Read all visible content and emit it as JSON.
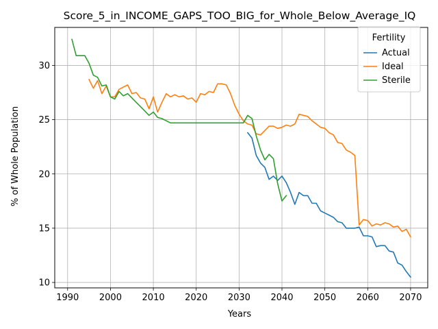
{
  "chart_data": {
    "type": "line",
    "title": "Score_5_in_INCOME_GAPS_TOO_BIG_for_Whole_Below_Average_IQ",
    "xlabel": "Years",
    "ylabel": "% of Whole Population",
    "xlim": [
      1987,
      2074
    ],
    "ylim": [
      9.5,
      33.5
    ],
    "xticks": [
      1990,
      2000,
      2010,
      2020,
      2030,
      2040,
      2050,
      2060,
      2070
    ],
    "yticks": [
      10,
      15,
      20,
      25,
      30
    ],
    "grid": true,
    "legend": {
      "title": "Fertility",
      "placement": "top-right",
      "entries": [
        "Actual",
        "Ideal",
        "Sterile"
      ]
    },
    "series": [
      {
        "name": "Actual",
        "color": "#1f77b4",
        "points": [
          [
            2032,
            23.8
          ],
          [
            2033,
            23.3
          ],
          [
            2034,
            21.7
          ],
          [
            2035,
            21.0
          ],
          [
            2036,
            20.6
          ],
          [
            2037,
            19.5
          ],
          [
            2038,
            19.8
          ],
          [
            2039,
            19.4
          ],
          [
            2040,
            19.8
          ],
          [
            2041,
            19.2
          ],
          [
            2042,
            18.3
          ],
          [
            2043,
            17.2
          ],
          [
            2044,
            18.3
          ],
          [
            2045,
            18.0
          ],
          [
            2046,
            18.0
          ],
          [
            2047,
            17.3
          ],
          [
            2048,
            17.3
          ],
          [
            2049,
            16.6
          ],
          [
            2050,
            16.4
          ],
          [
            2051,
            16.2
          ],
          [
            2052,
            16.0
          ],
          [
            2053,
            15.6
          ],
          [
            2054,
            15.5
          ],
          [
            2055,
            15.0
          ],
          [
            2056,
            15.0
          ],
          [
            2057,
            15.0
          ],
          [
            2058,
            15.1
          ],
          [
            2059,
            14.3
          ],
          [
            2060,
            14.3
          ],
          [
            2061,
            14.2
          ],
          [
            2062,
            13.3
          ],
          [
            2063,
            13.4
          ],
          [
            2064,
            13.4
          ],
          [
            2065,
            12.9
          ],
          [
            2066,
            12.8
          ],
          [
            2067,
            11.8
          ],
          [
            2068,
            11.6
          ],
          [
            2069,
            11.0
          ],
          [
            2070,
            10.5
          ]
        ]
      },
      {
        "name": "Ideal",
        "color": "#ff7f0e",
        "points": [
          [
            1995,
            28.7
          ],
          [
            1996,
            27.9
          ],
          [
            1997,
            28.6
          ],
          [
            1998,
            27.4
          ],
          [
            1999,
            28.1
          ],
          [
            2000,
            27.1
          ],
          [
            2001,
            27.1
          ],
          [
            2002,
            27.8
          ],
          [
            2003,
            28.0
          ],
          [
            2004,
            28.2
          ],
          [
            2005,
            27.4
          ],
          [
            2006,
            27.5
          ],
          [
            2007,
            27.0
          ],
          [
            2008,
            26.9
          ],
          [
            2009,
            26.0
          ],
          [
            2010,
            27.1
          ],
          [
            2011,
            25.7
          ],
          [
            2012,
            26.6
          ],
          [
            2013,
            27.4
          ],
          [
            2014,
            27.1
          ],
          [
            2015,
            27.3
          ],
          [
            2016,
            27.1
          ],
          [
            2017,
            27.2
          ],
          [
            2018,
            26.9
          ],
          [
            2019,
            27.0
          ],
          [
            2020,
            26.6
          ],
          [
            2021,
            27.4
          ],
          [
            2022,
            27.3
          ],
          [
            2023,
            27.6
          ],
          [
            2024,
            27.5
          ],
          [
            2025,
            28.3
          ],
          [
            2026,
            28.3
          ],
          [
            2027,
            28.2
          ],
          [
            2028,
            27.4
          ],
          [
            2029,
            26.3
          ],
          [
            2030,
            25.5
          ],
          [
            2031,
            24.9
          ],
          [
            2032,
            24.6
          ],
          [
            2033,
            24.5
          ],
          [
            2034,
            23.7
          ],
          [
            2035,
            23.6
          ],
          [
            2036,
            24.0
          ],
          [
            2037,
            24.4
          ],
          [
            2038,
            24.4
          ],
          [
            2039,
            24.2
          ],
          [
            2040,
            24.3
          ],
          [
            2041,
            24.5
          ],
          [
            2042,
            24.4
          ],
          [
            2043,
            24.6
          ],
          [
            2044,
            25.5
          ],
          [
            2045,
            25.4
          ],
          [
            2046,
            25.3
          ],
          [
            2047,
            24.9
          ],
          [
            2048,
            24.6
          ],
          [
            2049,
            24.3
          ],
          [
            2050,
            24.2
          ],
          [
            2051,
            23.8
          ],
          [
            2052,
            23.6
          ],
          [
            2053,
            22.9
          ],
          [
            2054,
            22.8
          ],
          [
            2055,
            22.2
          ],
          [
            2056,
            22.0
          ],
          [
            2057,
            21.7
          ],
          [
            2058,
            15.3
          ],
          [
            2059,
            15.8
          ],
          [
            2060,
            15.7
          ],
          [
            2061,
            15.2
          ],
          [
            2062,
            15.4
          ],
          [
            2063,
            15.3
          ],
          [
            2064,
            15.5
          ],
          [
            2065,
            15.4
          ],
          [
            2066,
            15.1
          ],
          [
            2067,
            15.2
          ],
          [
            2068,
            14.7
          ],
          [
            2069,
            14.9
          ],
          [
            2070,
            14.2
          ]
        ]
      },
      {
        "name": "Sterile",
        "color": "#2ca02c",
        "points": [
          [
            1991,
            32.4
          ],
          [
            1992,
            30.9
          ],
          [
            1993,
            30.9
          ],
          [
            1994,
            30.9
          ],
          [
            1995,
            30.2
          ],
          [
            1996,
            29.1
          ],
          [
            1997,
            28.9
          ],
          [
            1998,
            28.1
          ],
          [
            1999,
            28.2
          ],
          [
            2000,
            27.1
          ],
          [
            2001,
            26.9
          ],
          [
            2002,
            27.6
          ],
          [
            2003,
            27.2
          ],
          [
            2004,
            27.4
          ],
          [
            2005,
            27.0
          ],
          [
            2006,
            26.6
          ],
          [
            2007,
            26.2
          ],
          [
            2008,
            25.8
          ],
          [
            2009,
            25.4
          ],
          [
            2010,
            25.7
          ],
          [
            2011,
            25.2
          ],
          [
            2012,
            25.1
          ],
          [
            2013,
            24.9
          ],
          [
            2014,
            24.7
          ],
          [
            2015,
            24.7
          ],
          [
            2016,
            24.7
          ],
          [
            2017,
            24.7
          ],
          [
            2018,
            24.7
          ],
          [
            2019,
            24.7
          ],
          [
            2020,
            24.7
          ],
          [
            2021,
            24.7
          ],
          [
            2022,
            24.7
          ],
          [
            2023,
            24.7
          ],
          [
            2024,
            24.7
          ],
          [
            2025,
            24.7
          ],
          [
            2026,
            24.7
          ],
          [
            2027,
            24.7
          ],
          [
            2028,
            24.7
          ],
          [
            2029,
            24.7
          ],
          [
            2030,
            24.7
          ],
          [
            2031,
            24.7
          ],
          [
            2032,
            25.4
          ],
          [
            2033,
            25.1
          ],
          [
            2034,
            23.5
          ],
          [
            2035,
            22.2
          ],
          [
            2036,
            21.3
          ],
          [
            2037,
            21.8
          ],
          [
            2038,
            21.4
          ],
          [
            2039,
            19.1
          ],
          [
            2040,
            17.5
          ],
          [
            2041,
            18.0
          ]
        ]
      }
    ]
  }
}
